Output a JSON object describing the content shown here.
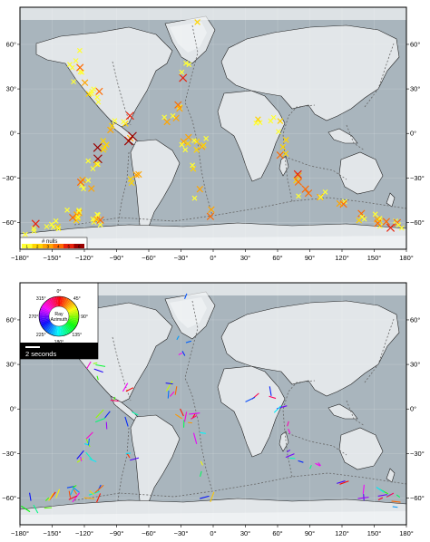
{
  "figure": {
    "panels": [
      {
        "id": "nulls",
        "legend_title": "# nulls",
        "legend_ticks": [
          "1",
          "2",
          "3",
          "4",
          "5",
          "6"
        ],
        "colorscale": [
          "#ffff33",
          "#ffd400",
          "#ffa500",
          "#ff6a00",
          "#e8220b",
          "#9a0000"
        ]
      },
      {
        "id": "splits",
        "rose_title": "Ray\nAzimuth",
        "rose_labels": [
          "0°",
          "45°",
          "90°",
          "135°",
          "180°",
          "225°",
          "270°",
          "315°"
        ],
        "scale_label": "2 seconds"
      }
    ],
    "axes": {
      "lon_ticks": [
        "−180°",
        "−150°",
        "−120°",
        "−90°",
        "−60°",
        "−30°",
        "0°",
        "30°",
        "60°",
        "90°",
        "120°",
        "150°",
        "180°"
      ],
      "lat_ticks": [
        "60°",
        "30°",
        "0°",
        "−30°",
        "−60°"
      ]
    },
    "colors": {
      "ocean": "#a9b5bd",
      "land": "#e2e6e9",
      "ice": "#f3f5f6",
      "plate_boundary": "#666666",
      "coast": "#222222"
    }
  }
}
